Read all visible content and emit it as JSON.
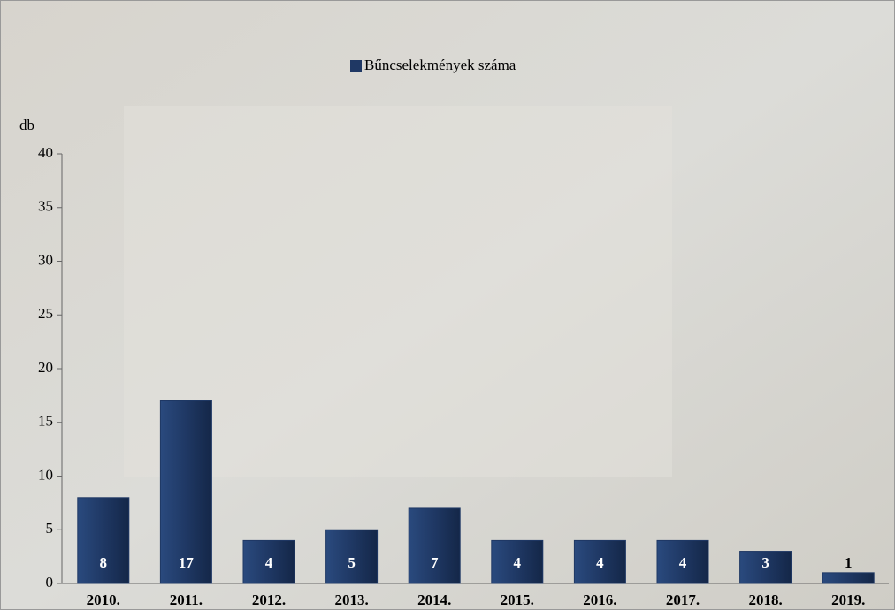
{
  "chart_data": {
    "type": "bar",
    "y_label": "db",
    "legend_name": "Bűncselekmények száma",
    "categories": [
      "2010.",
      "2011.",
      "2012.",
      "2013.",
      "2014.",
      "2015.",
      "2016.",
      "2017.",
      "2018.",
      "2019."
    ],
    "series": [
      {
        "name": "Bűncselekmények száma",
        "color": "#1f3864",
        "values": [
          8,
          17,
          4,
          5,
          7,
          4,
          4,
          4,
          3,
          1
        ]
      }
    ],
    "ylim": [
      0,
      40
    ],
    "yticks": [
      0,
      5,
      10,
      15,
      20,
      25,
      30,
      35,
      40
    ],
    "grid": false
  }
}
